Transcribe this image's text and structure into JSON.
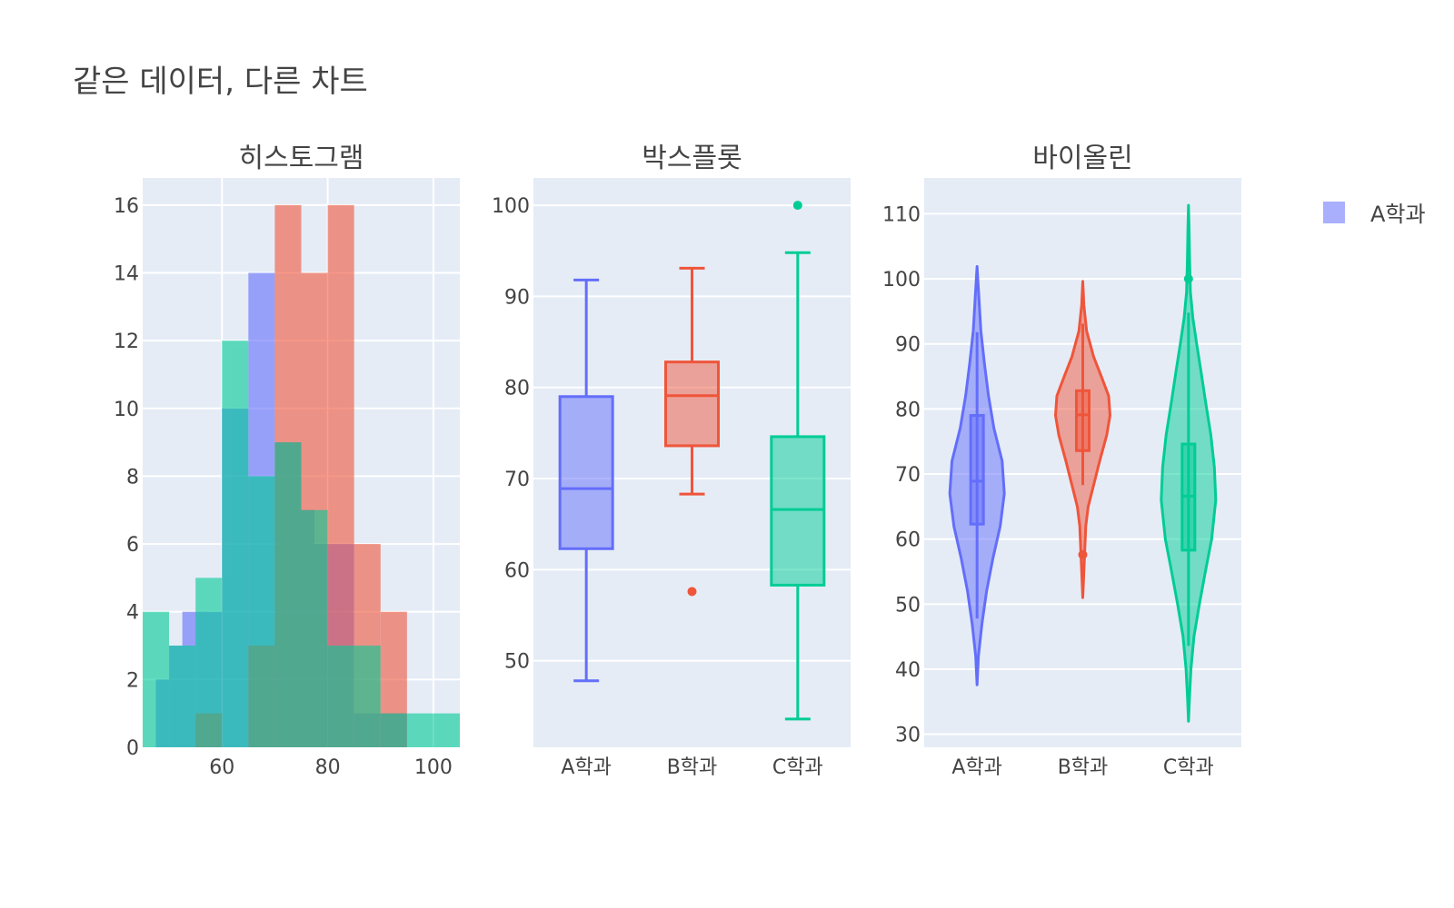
{
  "figure_title": "같은 데이터, 다른 차트",
  "colors": {
    "A": "#636efa",
    "B": "#ef553b",
    "C": "#00cc96",
    "plot_bg": "#e5ecf6",
    "grid": "#ffffff",
    "text": "#444444"
  },
  "legend": [
    {
      "label": "A학과",
      "color": "#636efa"
    }
  ],
  "chart_data": [
    {
      "type": "bar",
      "subtype": "overlaid-histogram",
      "title": "히스토그램",
      "xlabel": "",
      "ylabel": "",
      "xlim": [
        45,
        105
      ],
      "ylim": [
        0,
        16.8
      ],
      "xticks": [
        60,
        80,
        100
      ],
      "yticks": [
        0,
        2,
        4,
        6,
        8,
        10,
        12,
        14,
        16
      ],
      "bin_size": 5,
      "grid": true,
      "series": [
        {
          "key": "A",
          "color": "#636efa",
          "opacity": 0.6,
          "bins": [
            [
              47.5,
              2
            ],
            [
              50,
              3
            ],
            [
              52.5,
              4
            ],
            [
              55,
              4
            ],
            [
              60,
              10
            ],
            [
              62.5,
              8
            ],
            [
              65,
              14
            ],
            [
              67.5,
              8
            ],
            [
              70,
              9
            ],
            [
              72.5,
              7
            ],
            [
              75,
              6
            ],
            [
              80,
              6
            ],
            [
              85,
              1
            ],
            [
              90,
              1
            ]
          ]
        },
        {
          "key": "B",
          "color": "#ef553b",
          "opacity": 0.6,
          "bins": [
            [
              55,
              1
            ],
            [
              65,
              3
            ],
            [
              70,
              16
            ],
            [
              75,
              14
            ],
            [
              80,
              16
            ],
            [
              85,
              6
            ],
            [
              90,
              4
            ]
          ]
        },
        {
          "key": "C",
          "color": "#00cc96",
          "opacity": 0.6,
          "bins": [
            [
              45,
              4
            ],
            [
              50,
              3
            ],
            [
              55,
              5
            ],
            [
              60,
              12
            ],
            [
              65,
              8
            ],
            [
              70,
              9
            ],
            [
              75,
              7
            ],
            [
              80,
              3
            ],
            [
              85,
              3
            ],
            [
              90,
              1
            ],
            [
              95,
              1
            ],
            [
              100,
              1
            ]
          ]
        }
      ]
    },
    {
      "type": "box",
      "title": "박스플롯",
      "categories": [
        "A학과",
        "B학과",
        "C학과"
      ],
      "ylim": [
        40.5,
        103
      ],
      "yticks": [
        50,
        60,
        70,
        80,
        90,
        100
      ],
      "grid": true,
      "series": [
        {
          "key": "A",
          "color": "#636efa",
          "min": 47.8,
          "q1": 62.3,
          "median": 68.9,
          "q3": 79.0,
          "max": 91.8,
          "outliers": []
        },
        {
          "key": "B",
          "color": "#ef553b",
          "min": 68.3,
          "q1": 73.6,
          "median": 79.1,
          "q3": 82.8,
          "max": 93.1,
          "outliers": [
            57.6
          ]
        },
        {
          "key": "C",
          "color": "#00cc96",
          "min": 43.6,
          "q1": 58.3,
          "median": 66.6,
          "q3": 74.6,
          "max": 94.8,
          "outliers": [
            100
          ]
        }
      ]
    },
    {
      "type": "violin",
      "title": "바이올린",
      "categories": [
        "A학과",
        "B학과",
        "C학과"
      ],
      "ylim": [
        28,
        115.5
      ],
      "yticks": [
        30,
        40,
        50,
        60,
        70,
        80,
        90,
        100,
        110
      ],
      "grid": true,
      "series": [
        {
          "key": "A",
          "color": "#636efa",
          "min": 47.8,
          "q1": 62.3,
          "median": 68.9,
          "q3": 79.0,
          "max": 91.8,
          "outliers": [],
          "density": [
            [
              37.6,
              0
            ],
            [
              42,
              0.05
            ],
            [
              47,
              0.18
            ],
            [
              52,
              0.35
            ],
            [
              57,
              0.58
            ],
            [
              62,
              0.85
            ],
            [
              67,
              1.0
            ],
            [
              72,
              0.92
            ],
            [
              77,
              0.62
            ],
            [
              82,
              0.42
            ],
            [
              87,
              0.27
            ],
            [
              92,
              0.14
            ],
            [
              97,
              0.07
            ],
            [
              101.9,
              0
            ]
          ]
        },
        {
          "key": "B",
          "color": "#ef553b",
          "min": 68.3,
          "q1": 73.6,
          "median": 79.1,
          "q3": 82.8,
          "max": 93.1,
          "outliers": [
            57.6
          ],
          "density": [
            [
              51,
              0
            ],
            [
              54,
              0.03
            ],
            [
              58,
              0.07
            ],
            [
              62,
              0.11
            ],
            [
              65,
              0.2
            ],
            [
              68,
              0.38
            ],
            [
              72,
              0.62
            ],
            [
              76,
              0.88
            ],
            [
              79,
              1.0
            ],
            [
              82,
              0.95
            ],
            [
              85,
              0.68
            ],
            [
              88,
              0.4
            ],
            [
              92,
              0.14
            ],
            [
              96,
              0.04
            ],
            [
              99.6,
              0
            ]
          ]
        },
        {
          "key": "C",
          "color": "#00cc96",
          "min": 43.6,
          "q1": 58.3,
          "median": 66.6,
          "q3": 74.6,
          "max": 94.8,
          "outliers": [
            100
          ],
          "density": [
            [
              32,
              0
            ],
            [
              36,
              0.04
            ],
            [
              40,
              0.09
            ],
            [
              45,
              0.2
            ],
            [
              50,
              0.4
            ],
            [
              55,
              0.62
            ],
            [
              60,
              0.85
            ],
            [
              66,
              1.0
            ],
            [
              71,
              0.95
            ],
            [
              76,
              0.82
            ],
            [
              81,
              0.63
            ],
            [
              86,
              0.45
            ],
            [
              90,
              0.3
            ],
            [
              94,
              0.16
            ],
            [
              98,
              0.07
            ],
            [
              103,
              0.04
            ],
            [
              108,
              0.02
            ],
            [
              111.3,
              0
            ]
          ]
        }
      ]
    }
  ]
}
